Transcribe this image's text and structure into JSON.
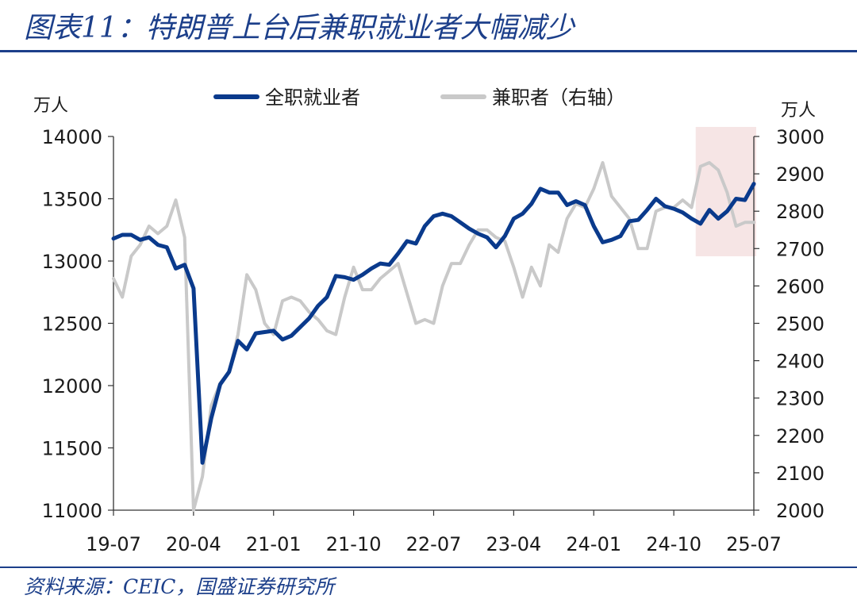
{
  "title": "图表11：特朗普上台后兼职就业者大幅减少",
  "source": "资料来源：CEIC，国盛证券研究所",
  "colors": {
    "primary": "#0a3a8c",
    "secondary": "#c9c9c9",
    "highlight": "#f3dcdc",
    "accent": "#1c3f8a"
  },
  "chart_data": {
    "type": "line",
    "x_ticks": [
      "19-07",
      "20-04",
      "21-01",
      "21-10",
      "22-07",
      "23-04",
      "24-01",
      "24-10",
      "25-07"
    ],
    "x_range": [
      "2019-07",
      "2025-07"
    ],
    "y_left": {
      "unit": "万人",
      "range": [
        11000,
        14000
      ],
      "ticks": [
        11000,
        11500,
        12000,
        12500,
        13000,
        13500,
        14000
      ]
    },
    "y_right": {
      "unit": "万人",
      "range": [
        2000,
        3000
      ],
      "ticks": [
        2000,
        2100,
        2200,
        2300,
        2400,
        2500,
        2600,
        2700,
        2800,
        2900,
        3000
      ]
    },
    "legend_position": "top",
    "highlight_range": [
      "2025-01",
      "2025-07"
    ],
    "series": [
      {
        "name": "全职就业者",
        "axis": "left",
        "x": [
          "2019-07",
          "2019-08",
          "2019-09",
          "2019-10",
          "2019-11",
          "2019-12",
          "2020-01",
          "2020-02",
          "2020-03",
          "2020-04",
          "2020-05",
          "2020-06",
          "2020-07",
          "2020-08",
          "2020-09",
          "2020-10",
          "2020-11",
          "2020-12",
          "2021-01",
          "2021-02",
          "2021-03",
          "2021-04",
          "2021-05",
          "2021-06",
          "2021-07",
          "2021-08",
          "2021-09",
          "2021-10",
          "2021-11",
          "2021-12",
          "2022-01",
          "2022-02",
          "2022-03",
          "2022-04",
          "2022-05",
          "2022-06",
          "2022-07",
          "2022-08",
          "2022-09",
          "2022-10",
          "2022-11",
          "2022-12",
          "2023-01",
          "2023-02",
          "2023-03",
          "2023-04",
          "2023-05",
          "2023-06",
          "2023-07",
          "2023-08",
          "2023-09",
          "2023-10",
          "2023-11",
          "2023-12",
          "2024-01",
          "2024-02",
          "2024-03",
          "2024-04",
          "2024-05",
          "2024-06",
          "2024-07",
          "2024-08",
          "2024-09",
          "2024-10",
          "2024-11",
          "2024-12",
          "2025-01",
          "2025-02",
          "2025-03",
          "2025-04",
          "2025-05",
          "2025-06",
          "2025-07"
        ],
        "values": [
          13180,
          13210,
          13210,
          13170,
          13190,
          13130,
          13110,
          12940,
          12970,
          12780,
          11380,
          11740,
          12010,
          12110,
          12360,
          12290,
          12420,
          12430,
          12440,
          12370,
          12400,
          12470,
          12540,
          12640,
          12710,
          12880,
          12870,
          12850,
          12890,
          12940,
          12980,
          12970,
          13060,
          13160,
          13140,
          13280,
          13360,
          13380,
          13360,
          13310,
          13260,
          13220,
          13190,
          13110,
          13200,
          13340,
          13380,
          13460,
          13580,
          13550,
          13550,
          13450,
          13480,
          13450,
          13280,
          13150,
          13170,
          13200,
          13320,
          13330,
          13410,
          13500,
          13440,
          13420,
          13390,
          13340,
          13300,
          13410,
          13340,
          13400,
          13500,
          13490,
          13620
        ]
      },
      {
        "name": "兼职者（右轴）",
        "axis": "right",
        "x": [
          "2019-07",
          "2019-08",
          "2019-09",
          "2019-10",
          "2019-11",
          "2019-12",
          "2020-01",
          "2020-02",
          "2020-03",
          "2020-04",
          "2020-05",
          "2020-06",
          "2020-07",
          "2020-08",
          "2020-09",
          "2020-10",
          "2020-11",
          "2020-12",
          "2021-01",
          "2021-02",
          "2021-03",
          "2021-04",
          "2021-05",
          "2021-06",
          "2021-07",
          "2021-08",
          "2021-09",
          "2021-10",
          "2021-11",
          "2021-12",
          "2022-01",
          "2022-02",
          "2022-03",
          "2022-04",
          "2022-05",
          "2022-06",
          "2022-07",
          "2022-08",
          "2022-09",
          "2022-10",
          "2022-11",
          "2022-12",
          "2023-01",
          "2023-02",
          "2023-03",
          "2023-04",
          "2023-05",
          "2023-06",
          "2023-07",
          "2023-08",
          "2023-09",
          "2023-10",
          "2023-11",
          "2023-12",
          "2024-01",
          "2024-02",
          "2024-03",
          "2024-04",
          "2024-05",
          "2024-06",
          "2024-07",
          "2024-08",
          "2024-09",
          "2024-10",
          "2024-11",
          "2024-12",
          "2025-01",
          "2025-02",
          "2025-03",
          "2025-04",
          "2025-05",
          "2025-06",
          "2025-07"
        ],
        "values": [
          2620,
          2570,
          2680,
          2710,
          2760,
          2740,
          2760,
          2830,
          2730,
          2000,
          2090,
          2280,
          2340,
          2370,
          2470,
          2630,
          2590,
          2500,
          2470,
          2560,
          2570,
          2560,
          2530,
          2510,
          2480,
          2470,
          2570,
          2650,
          2590,
          2590,
          2620,
          2640,
          2660,
          2580,
          2500,
          2510,
          2500,
          2600,
          2660,
          2660,
          2710,
          2750,
          2750,
          2730,
          2720,
          2650,
          2570,
          2650,
          2600,
          2710,
          2690,
          2780,
          2820,
          2810,
          2860,
          2930,
          2840,
          2810,
          2780,
          2700,
          2700,
          2800,
          2810,
          2810,
          2830,
          2810,
          2920,
          2930,
          2910,
          2850,
          2760,
          2770,
          2770
        ]
      }
    ]
  }
}
